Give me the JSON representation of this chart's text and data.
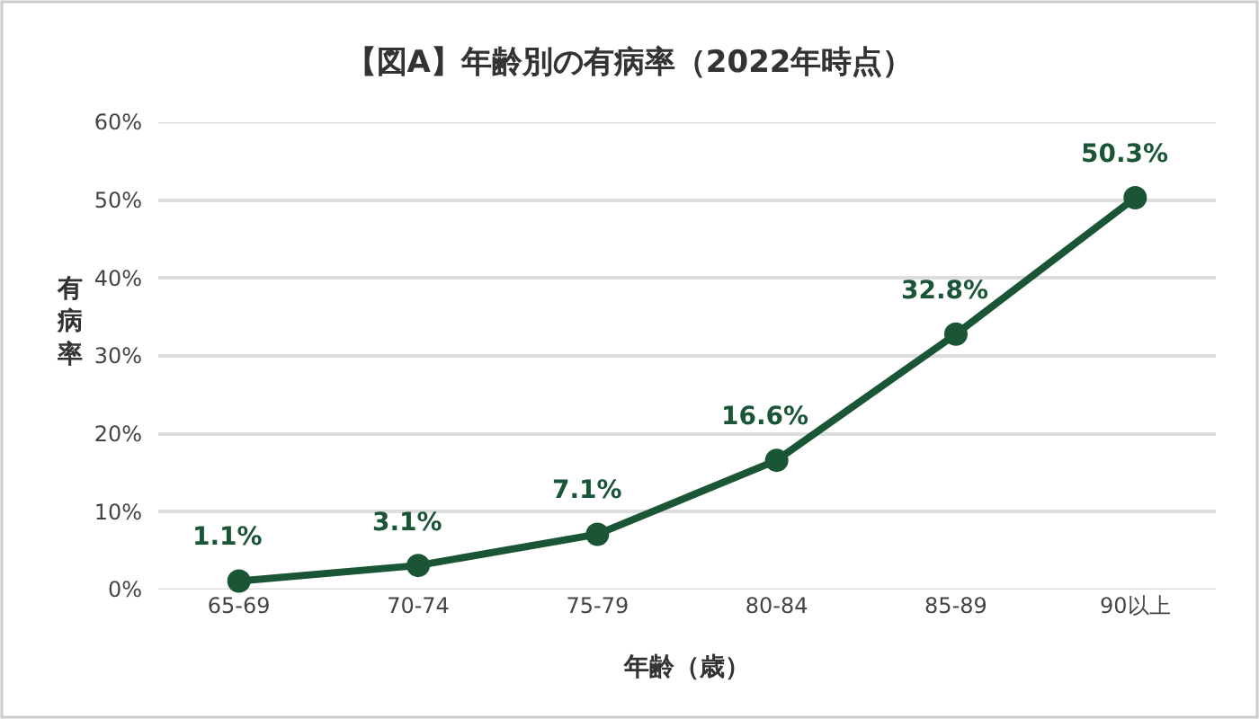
{
  "chart_data": {
    "type": "line",
    "title": "【図A】年齢別の有病率（2022年時点）",
    "xlabel": "年齢（歳）",
    "ylabel": "有病率",
    "categories": [
      "65-69",
      "70-74",
      "75-79",
      "80-84",
      "85-89",
      "90以上"
    ],
    "series": [
      {
        "color": "#1a5535",
        "values": [
          1.1,
          3.1,
          7.1,
          16.6,
          32.8,
          50.3
        ],
        "value_labels": [
          "1.1%",
          "3.1%",
          "7.1%",
          "16.6%",
          "32.8%",
          "50.3%"
        ]
      }
    ],
    "ylim": [
      0,
      60
    ],
    "yticks": [
      {
        "value": 0,
        "label": "0%"
      },
      {
        "value": 10,
        "label": "10%"
      },
      {
        "value": 20,
        "label": "20%"
      },
      {
        "value": 30,
        "label": "30%"
      },
      {
        "value": 40,
        "label": "40%"
      },
      {
        "value": 50,
        "label": "50%"
      },
      {
        "value": 60,
        "label": "60%"
      }
    ],
    "grid": "y",
    "marker": "circle",
    "line_style": "solid"
  }
}
